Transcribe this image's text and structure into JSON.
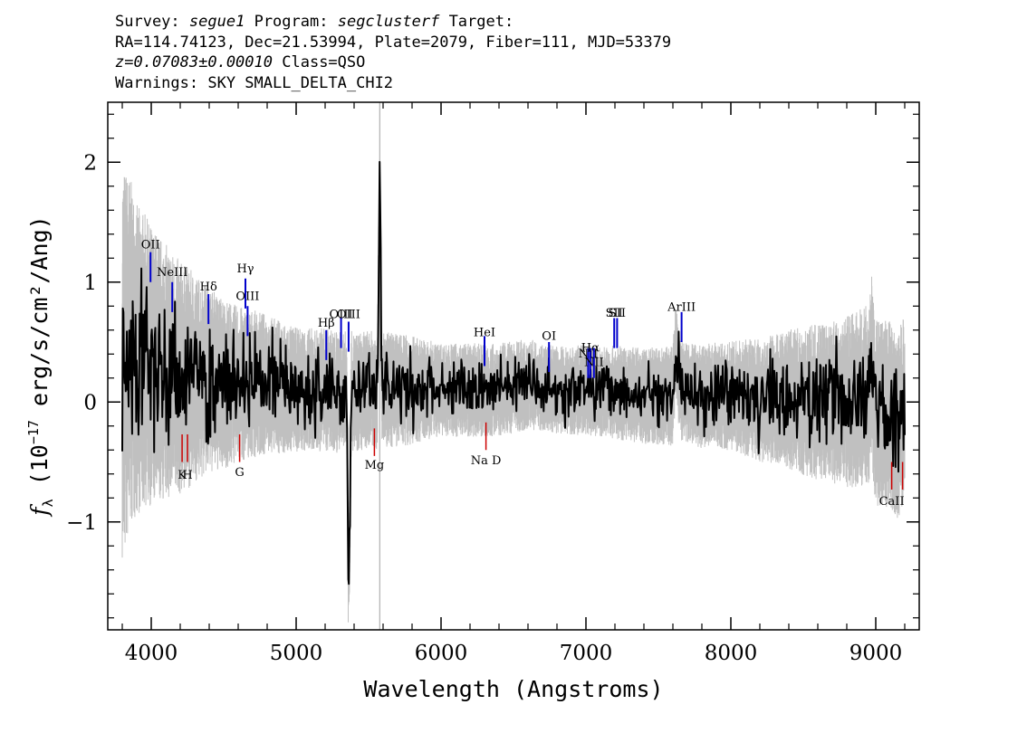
{
  "header": {
    "survey_label": "Survey:",
    "survey": "segue1",
    "program_label": "Program:",
    "program": "segclusterf",
    "target_label": "Target:",
    "line2": "RA=114.74123, Dec=21.53994, Plate=2079, Fiber=111, MJD=53379",
    "redshift": "z=0.07083±0.00010",
    "class_text": "Class=QSO",
    "warnings": "Warnings: SKY SMALL_DELTA_CHI2"
  },
  "chart_data": {
    "type": "line",
    "title": "",
    "xlabel": "Wavelength (Angstroms)",
    "ylabel": "f_λ (10^-17 erg/s/cm²/Ang)",
    "xlim": [
      3700,
      9300
    ],
    "ylim": [
      -1.9,
      2.5
    ],
    "x_ticks": [
      4000,
      5000,
      6000,
      7000,
      8000,
      9000
    ],
    "y_ticks": [
      -1,
      0,
      1,
      2
    ],
    "x_tick_labels": [
      "4000",
      "5000",
      "6000",
      "7000",
      "8000",
      "9000"
    ],
    "y_tick_labels": [
      "−1",
      "0",
      "1",
      "2"
    ],
    "grid": false,
    "colors": {
      "spectrum": "#000000",
      "noise": "#c0c0c0",
      "emission": "#0000cc",
      "absorption": "#cc0000",
      "sky_line": "#b0b0b0"
    },
    "sky_line_x": 5577,
    "series": [
      {
        "kind": "spectrum",
        "x": [
          3800,
          3850,
          3900,
          3950,
          4000,
          4100,
          4200,
          4300,
          4400,
          4500,
          4600,
          4700,
          4800,
          4900,
          5000,
          5100,
          5200,
          5300,
          5350,
          5360,
          5370,
          5380,
          5400,
          5500,
          5560,
          5577,
          5590,
          5650,
          5800,
          6000,
          6200,
          6400,
          6600,
          6800,
          7000,
          7200,
          7400,
          7600,
          7620,
          7650,
          7800,
          8000,
          8200,
          8400,
          8600,
          8800,
          8950,
          8970,
          9000,
          9100,
          9150,
          9200
        ],
        "y": [
          0.3,
          0.4,
          0.35,
          0.35,
          0.3,
          0.25,
          0.2,
          0.2,
          0.18,
          0.15,
          0.15,
          0.15,
          0.15,
          0.12,
          0.1,
          0.1,
          0.1,
          0.08,
          0.1,
          -1.4,
          -1.2,
          0.1,
          0.08,
          0.1,
          0.1,
          1.9,
          0.1,
          0.1,
          0.1,
          0.1,
          0.1,
          0.1,
          0.15,
          0.1,
          0.1,
          0.08,
          0.05,
          0.05,
          0.45,
          0.1,
          0.05,
          0.05,
          0.02,
          0.02,
          0.0,
          0.0,
          0.05,
          0.3,
          -0.1,
          -0.1,
          -0.2,
          -0.05
        ]
      },
      {
        "kind": "noise",
        "x": [
          3800,
          3900,
          4000,
          4200,
          4400,
          4600,
          4800,
          5000,
          5200,
          5400,
          5600,
          5800,
          6000,
          6400,
          6800,
          7200,
          7600,
          8000,
          8400,
          8800,
          9000,
          9200
        ],
        "y": [
          1.3,
          1.0,
          0.9,
          0.75,
          0.6,
          0.5,
          0.45,
          0.4,
          0.4,
          0.38,
          0.38,
          0.35,
          0.3,
          0.3,
          0.28,
          0.3,
          0.32,
          0.35,
          0.45,
          0.55,
          0.6,
          0.6
        ]
      }
    ],
    "emission_lines": [
      {
        "label": "OII",
        "x": 3995,
        "y": 1.0,
        "label_y": 1.28
      },
      {
        "label": "NeIII",
        "x": 4145,
        "y": 0.75,
        "label_y": 1.05
      },
      {
        "label": "Hδ",
        "x": 4395,
        "y": 0.65,
        "label_y": 0.93
      },
      {
        "label": "Hγ",
        "x": 4650,
        "y": 0.78,
        "label_y": 1.08
      },
      {
        "label": "OIII",
        "x": 4665,
        "y": 0.55,
        "label_y": 0.85
      },
      {
        "label": "Hβ",
        "x": 5208,
        "y": 0.35,
        "label_y": 0.63
      },
      {
        "label": "OIII",
        "x": 5310,
        "y": 0.45,
        "label_y": 0.7
      },
      {
        "label": "OIII",
        "x": 5362,
        "y": 0.42,
        "label_y": 0.7
      },
      {
        "label": "HeI",
        "x": 6300,
        "y": 0.3,
        "label_y": 0.55
      },
      {
        "label": "OI",
        "x": 6745,
        "y": 0.25,
        "label_y": 0.52
      },
      {
        "label": "NII",
        "x": 7015,
        "y": 0.2,
        "label_y": 0.37
      },
      {
        "label": "Hα",
        "x": 7030,
        "y": 0.2,
        "label_y": 0.42
      },
      {
        "label": "NII",
        "x": 7055,
        "y": 0.2,
        "label_y": 0.3
      },
      {
        "label": "SII",
        "x": 7195,
        "y": 0.45,
        "label_y": 0.71
      },
      {
        "label": "SII",
        "x": 7215,
        "y": 0.45,
        "label_y": 0.71
      },
      {
        "label": "ArIII",
        "x": 7660,
        "y": 0.5,
        "label_y": 0.76
      }
    ],
    "absorption_lines": [
      {
        "label": "K",
        "x": 4213,
        "y": -0.5,
        "label_y": -0.6
      },
      {
        "label": "H",
        "x": 4250,
        "y": -0.5,
        "label_y": -0.6
      },
      {
        "label": "G",
        "x": 4610,
        "y": -0.5,
        "label_y": -0.58
      },
      {
        "label": "Mg",
        "x": 5540,
        "y": -0.45,
        "label_y": -0.52
      },
      {
        "label": "Na D",
        "x": 6310,
        "y": -0.4,
        "label_y": -0.48
      },
      {
        "label": "CaII",
        "x": 9110,
        "y": -0.73,
        "label_y": -0.82
      },
      {
        "label": "",
        "x": 9185,
        "y": -0.73,
        "label_y": -0.82
      }
    ]
  }
}
